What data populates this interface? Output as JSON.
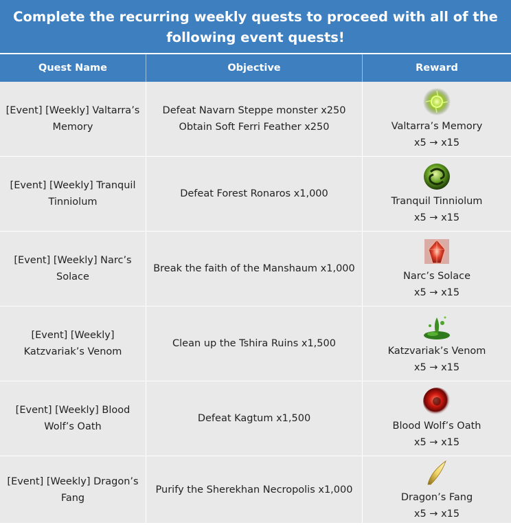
{
  "banner": "Complete the recurring weekly quests to proceed with all of the following event quests!",
  "headers": {
    "quest": "Quest Name",
    "objective": "Objective",
    "reward": "Reward"
  },
  "rows": [
    {
      "quest": "[Event] [Weekly] Valtarra’s Memory",
      "objective1": "Defeat Navarn Steppe monster x250",
      "objective2": "Obtain Soft Ferri Feather x250",
      "reward": "Valtarra’s Memory",
      "qty": "x5 → x15",
      "icon": "green-orb-icon"
    },
    {
      "quest": "[Event] [Weekly] Tranquil Tinniolum",
      "objective1": "Defeat Forest Ronaros x1,000",
      "objective2": "",
      "reward": "Tranquil Tinniolum",
      "qty": "x5 → x15",
      "icon": "green-swirl-icon"
    },
    {
      "quest": "[Event] [Weekly] Narc’s Solace",
      "objective1": "Break the faith of the Manshaum x1,000",
      "objective2": "",
      "reward": "Narc’s Solace",
      "qty": "x5 → x15",
      "icon": "red-crystal-icon"
    },
    {
      "quest": "[Event] [Weekly] Katzvariak’s Venom",
      "objective1": "Clean up the Tshira Ruins x1,500",
      "objective2": "",
      "reward": "Katzvariak’s Venom",
      "qty": "x5 → x15",
      "icon": "venom-puddle-icon"
    },
    {
      "quest": "[Event] [Weekly] Blood Wolf’s Oath",
      "objective1": "Defeat Kagtum x1,500",
      "objective2": "",
      "reward": "Blood Wolf’s Oath",
      "qty": "x5  → x15",
      "icon": "red-orb-icon"
    },
    {
      "quest": "[Event] [Weekly] Dragon’s Fang",
      "objective1": "Purify the Sherekhan Necropolis x1,000",
      "objective2": "",
      "reward": "Dragon’s Fang",
      "qty": "x5 → x15",
      "icon": "golden-fang-icon"
    }
  ]
}
